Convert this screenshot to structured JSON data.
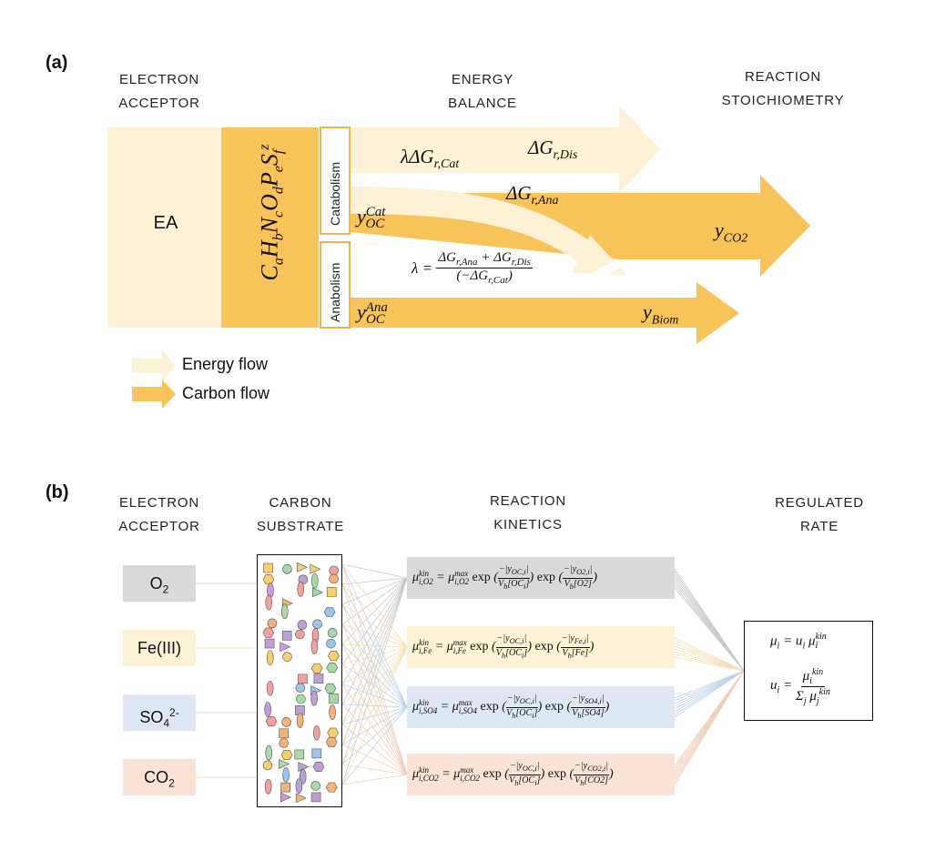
{
  "panel_a": {
    "label": "(a)",
    "headers": {
      "electron_acceptor": [
        "ELECTRON",
        "ACCEPTOR"
      ],
      "energy_balance": [
        "ENERGY",
        "BALANCE"
      ],
      "reaction_stoichiometry": [
        "REACTION",
        "STOICHIOMETRY"
      ]
    },
    "ea_label": "EA",
    "formula": "CaHbNcOdPeSfz",
    "catabolism_label": "Catabolism",
    "anabolism_label": "Anabolism",
    "lambda_dg_cat": "λΔGr,Cat",
    "dg_dis": "ΔGr,Dis",
    "dg_ana": "ΔGr,Ana",
    "y_oc_cat": "yOCCat",
    "y_oc_ana": "yOCAna",
    "lambda_eq": "λ = (ΔGr,Ana + ΔGr,Dis) / (−ΔGr,Cat)",
    "y_co2": "yCO2",
    "y_biom": "yBiom",
    "legend": {
      "energy_flow": "Energy flow",
      "carbon_flow": "Carbon flow"
    },
    "colors": {
      "energy": "#fdf1d6",
      "carbon": "#f8c45a",
      "box": "#f8c45a",
      "border": "#f0b34a"
    }
  },
  "panel_b": {
    "label": "(b)",
    "headers": {
      "electron_acceptor": [
        "ELECTRON",
        "ACCEPTOR"
      ],
      "carbon_substrate": [
        "CARBON",
        "SUBSTRATE"
      ],
      "reaction_kinetics": [
        "REACTION",
        "KINETICS"
      ],
      "regulated_rate": [
        "REGULATED",
        "RATE"
      ]
    },
    "acceptors": [
      {
        "label": "O2",
        "color": "#d9d9d9"
      },
      {
        "label": "Fe(III)",
        "color": "#fdf1d6"
      },
      {
        "label": "SO42-",
        "color": "#dde8f4"
      },
      {
        "label": "CO2",
        "color": "#f8e3d6"
      }
    ],
    "kinetics": [
      {
        "sub": "i,O2",
        "y": "yO2,i",
        "acc": "O2",
        "color": "#d9d9d9"
      },
      {
        "sub": "i,Fe",
        "y": "yFe,i",
        "acc": "Fe",
        "color": "#fdf1d6"
      },
      {
        "sub": "i,SO4",
        "y": "ySO4,i",
        "acc": "SO4",
        "color": "#dde8f4"
      },
      {
        "sub": "i,CO2",
        "y": "yCO2,i",
        "acc": "CO2",
        "color": "#f8e3d6"
      }
    ],
    "regulated": {
      "mu_eq": "μi = ui μikin",
      "u_eq": "ui = μikin / Σj μjkin"
    }
  }
}
